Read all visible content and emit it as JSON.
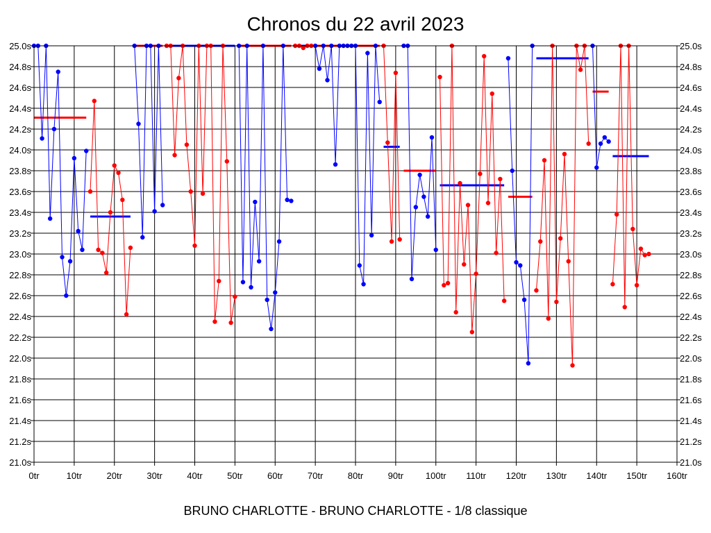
{
  "chart_data": {
    "type": "line",
    "title": "Chronos du 22 avril 2023",
    "xlabel": "BRUNO CHARLOTTE - BRUNO CHARLOTTE - 1/8 classique",
    "ylabel": "",
    "xlim": [
      0,
      160
    ],
    "ylim": [
      21.0,
      25.0
    ],
    "grid": true,
    "x_tick_labels": [
      "0tr",
      "10tr",
      "20tr",
      "30tr",
      "40tr",
      "50tr",
      "60tr",
      "70tr",
      "80tr",
      "90tr",
      "100tr",
      "110tr",
      "120tr",
      "130tr",
      "140tr",
      "150tr",
      "160tr"
    ],
    "y_tick_labels": [
      "21.0s",
      "21.2s",
      "21.4s",
      "21.6s",
      "21.8s",
      "22.0s",
      "22.2s",
      "22.4s",
      "22.6s",
      "22.8s",
      "23.0s",
      "23.2s",
      "23.4s",
      "23.6s",
      "23.8s",
      "24.0s",
      "24.2s",
      "24.4s",
      "24.6s",
      "24.8s",
      "25.0s"
    ],
    "y_ticks_right": true,
    "series": [
      {
        "name": "bleu-1",
        "color": "#0000ff",
        "points": [
          [
            0,
            25.0
          ],
          [
            1,
            25.0
          ],
          [
            2,
            24.11
          ],
          [
            3,
            25.0
          ],
          [
            4,
            23.34
          ],
          [
            5,
            24.2
          ],
          [
            6,
            24.75
          ],
          [
            7,
            22.97
          ],
          [
            8,
            22.6
          ],
          [
            9,
            22.93
          ],
          [
            10,
            23.92
          ],
          [
            11,
            23.22
          ],
          [
            12,
            23.04
          ],
          [
            13,
            23.99
          ]
        ]
      },
      {
        "name": "rouge-1",
        "color": "#ff0000",
        "points": [
          [
            14,
            23.6
          ],
          [
            15,
            24.47
          ],
          [
            16,
            23.04
          ],
          [
            17,
            23.01
          ],
          [
            18,
            22.82
          ],
          [
            19,
            23.4
          ],
          [
            20,
            23.85
          ],
          [
            21,
            23.78
          ],
          [
            22,
            23.52
          ],
          [
            23,
            22.42
          ],
          [
            24,
            23.06
          ]
        ]
      },
      {
        "name": "bleu-2",
        "color": "#0000ff",
        "points": [
          [
            25,
            25.0
          ],
          [
            26,
            24.25
          ],
          [
            27,
            23.16
          ],
          [
            28,
            25.0
          ],
          [
            29,
            25.0
          ],
          [
            30,
            23.41
          ],
          [
            31,
            25.0
          ],
          [
            32,
            23.47
          ]
        ]
      },
      {
        "name": "rouge-2",
        "color": "#ff0000",
        "points": [
          [
            33,
            25.0
          ],
          [
            34,
            25.0
          ],
          [
            35,
            23.95
          ],
          [
            36,
            24.69
          ],
          [
            37,
            25.0
          ],
          [
            38,
            24.05
          ],
          [
            39,
            23.6
          ],
          [
            40,
            23.08
          ],
          [
            41,
            25.0
          ],
          [
            42,
            23.58
          ],
          [
            43,
            25.0
          ],
          [
            44,
            25.0
          ],
          [
            45,
            22.35
          ],
          [
            46,
            22.74
          ],
          [
            47,
            25.0
          ],
          [
            48,
            23.89
          ],
          [
            49,
            22.34
          ],
          [
            50,
            22.59
          ]
        ]
      },
      {
        "name": "bleu-3",
        "color": "#0000ff",
        "points": [
          [
            51,
            25.0
          ],
          [
            52,
            22.73
          ],
          [
            53,
            25.0
          ],
          [
            54,
            22.68
          ],
          [
            55,
            23.5
          ],
          [
            56,
            22.93
          ],
          [
            57,
            25.0
          ],
          [
            58,
            22.56
          ],
          [
            59,
            22.28
          ],
          [
            60,
            22.63
          ],
          [
            61,
            23.12
          ],
          [
            62,
            25.0
          ],
          [
            63,
            23.52
          ],
          [
            64,
            23.51
          ]
        ]
      },
      {
        "name": "rouge-3",
        "color": "#ff0000",
        "points": [
          [
            65,
            25.0
          ],
          [
            66,
            25.0
          ],
          [
            67,
            24.98
          ],
          [
            68,
            25.0
          ],
          [
            69,
            25.0
          ]
        ]
      },
      {
        "name": "bleu-4",
        "color": "#0000ff",
        "points": [
          [
            70,
            25.0
          ],
          [
            71,
            24.78
          ],
          [
            72,
            25.0
          ],
          [
            73,
            24.67
          ],
          [
            74,
            25.0
          ],
          [
            75,
            23.86
          ],
          [
            76,
            25.0
          ],
          [
            77,
            25.0
          ],
          [
            78,
            25.0
          ],
          [
            79,
            25.0
          ],
          [
            80,
            25.0
          ],
          [
            81,
            22.89
          ],
          [
            82,
            22.71
          ],
          [
            83,
            24.93
          ],
          [
            84,
            23.18
          ],
          [
            85,
            25.0
          ],
          [
            86,
            24.46
          ]
        ]
      },
      {
        "name": "rouge-4",
        "color": "#ff0000",
        "points": [
          [
            87,
            25.0
          ],
          [
            88,
            24.07
          ],
          [
            89,
            23.12
          ],
          [
            90,
            24.74
          ],
          [
            91,
            23.14
          ]
        ]
      },
      {
        "name": "bleu-5",
        "color": "#0000ff",
        "points": [
          [
            92,
            25.0
          ],
          [
            93,
            25.0
          ],
          [
            94,
            22.76
          ],
          [
            95,
            23.45
          ],
          [
            96,
            23.76
          ],
          [
            97,
            23.55
          ],
          [
            98,
            23.36
          ],
          [
            99,
            24.12
          ],
          [
            100,
            23.04
          ]
        ]
      },
      {
        "name": "rouge-5",
        "color": "#ff0000",
        "points": [
          [
            101,
            24.7
          ],
          [
            102,
            22.7
          ],
          [
            103,
            22.72
          ],
          [
            104,
            25.0
          ],
          [
            105,
            22.44
          ],
          [
            106,
            23.68
          ],
          [
            107,
            22.9
          ],
          [
            108,
            23.47
          ],
          [
            109,
            22.25
          ],
          [
            110,
            22.81
          ],
          [
            111,
            23.77
          ],
          [
            112,
            24.9
          ],
          [
            113,
            23.49
          ],
          [
            114,
            24.54
          ],
          [
            115,
            23.01
          ],
          [
            116,
            23.72
          ],
          [
            117,
            22.55
          ]
        ]
      },
      {
        "name": "bleu-6",
        "color": "#0000ff",
        "points": [
          [
            118,
            24.88
          ],
          [
            119,
            23.8
          ],
          [
            120,
            22.92
          ],
          [
            121,
            22.89
          ],
          [
            122,
            22.56
          ],
          [
            123,
            21.95
          ],
          [
            124,
            25.0
          ]
        ]
      },
      {
        "name": "rouge-6",
        "color": "#ff0000",
        "points": [
          [
            125,
            22.65
          ],
          [
            126,
            23.12
          ],
          [
            127,
            23.9
          ],
          [
            128,
            22.38
          ],
          [
            129,
            25.0
          ],
          [
            130,
            22.54
          ],
          [
            131,
            23.15
          ],
          [
            132,
            23.96
          ],
          [
            133,
            22.93
          ],
          [
            134,
            21.93
          ],
          [
            135,
            25.0
          ],
          [
            136,
            24.77
          ],
          [
            137,
            25.0
          ],
          [
            138,
            24.06
          ]
        ]
      },
      {
        "name": "bleu-7",
        "color": "#0000ff",
        "points": [
          [
            139,
            25.0
          ],
          [
            140,
            23.83
          ],
          [
            141,
            24.06
          ],
          [
            142,
            24.12
          ],
          [
            143,
            24.08
          ]
        ]
      },
      {
        "name": "rouge-7",
        "color": "#ff0000",
        "points": [
          [
            144,
            22.71
          ],
          [
            145,
            23.38
          ],
          [
            146,
            25.0
          ],
          [
            147,
            22.49
          ],
          [
            148,
            25.0
          ],
          [
            149,
            23.24
          ],
          [
            150,
            22.7
          ],
          [
            151,
            23.05
          ],
          [
            152,
            22.99
          ],
          [
            153,
            23.0
          ]
        ]
      }
    ],
    "averages": [
      {
        "color": "#ff0000",
        "x_start": 0,
        "x_end": 13,
        "value": 24.31
      },
      {
        "color": "#0000ff",
        "x_start": 14,
        "x_end": 24,
        "value": 23.36
      },
      {
        "color": "#ff0000",
        "x_start": 25,
        "x_end": 32,
        "value": 25.0
      },
      {
        "color": "#0000ff",
        "x_start": 33,
        "x_end": 50,
        "value": 25.0
      },
      {
        "color": "#ff0000",
        "x_start": 51,
        "x_end": 64,
        "value": 25.0
      },
      {
        "color": "#0000ff",
        "x_start": 65,
        "x_end": 69,
        "value": 25.0
      },
      {
        "color": "#ff0000",
        "x_start": 70,
        "x_end": 86,
        "value": 25.0
      },
      {
        "color": "#0000ff",
        "x_start": 87,
        "x_end": 91,
        "value": 24.03
      },
      {
        "color": "#ff0000",
        "x_start": 92,
        "x_end": 100,
        "value": 23.8
      },
      {
        "color": "#0000ff",
        "x_start": 101,
        "x_end": 117,
        "value": 23.66
      },
      {
        "color": "#ff0000",
        "x_start": 118,
        "x_end": 124,
        "value": 23.55
      },
      {
        "color": "#0000ff",
        "x_start": 125,
        "x_end": 138,
        "value": 24.88
      },
      {
        "color": "#ff0000",
        "x_start": 139,
        "x_end": 143,
        "value": 24.56
      },
      {
        "color": "#0000ff",
        "x_start": 144,
        "x_end": 153,
        "value": 23.94
      }
    ]
  }
}
